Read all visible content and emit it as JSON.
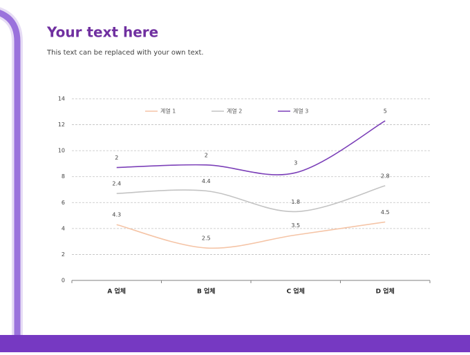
{
  "header": {
    "title": "Your text here",
    "subtitle": "This text can be replaced with your own text."
  },
  "chart_data": {
    "type": "line",
    "stacked": true,
    "smooth": true,
    "grid": true,
    "legend": "top",
    "categories": [
      "A 업체",
      "B 업체",
      "C 업체",
      "D 업체"
    ],
    "series": [
      {
        "name": "계열 1",
        "color": "#f5c4a6",
        "values": [
          4.3,
          2.5,
          3.5,
          4.5
        ]
      },
      {
        "name": "계열 2",
        "color": "#c3c3c3",
        "values": [
          2.4,
          4.4,
          1.8,
          2.8
        ]
      },
      {
        "name": "계열 3",
        "color": "#7b3fb8",
        "values": [
          2,
          2,
          3,
          5
        ]
      }
    ],
    "ylim": [
      0,
      14
    ],
    "yticks": [
      0,
      2,
      4,
      6,
      8,
      10,
      12,
      14
    ]
  }
}
